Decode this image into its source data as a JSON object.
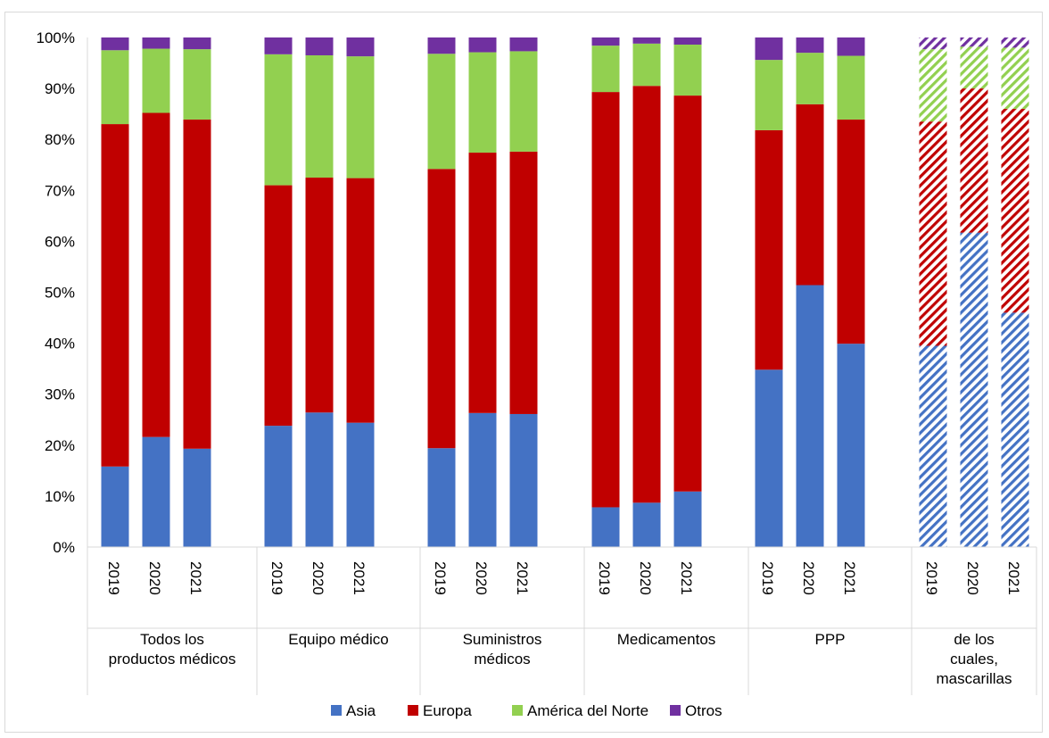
{
  "chart_data": {
    "type": "bar",
    "stacked": true,
    "normalized": true,
    "ylim": [
      0,
      100
    ],
    "yticks": [
      "0%",
      "10%",
      "20%",
      "30%",
      "40%",
      "50%",
      "60%",
      "70%",
      "80%",
      "90%",
      "100%"
    ],
    "grid": false,
    "legend_position": "bottom",
    "series": [
      {
        "name": "Asia",
        "color": "#4472c4"
      },
      {
        "name": "Europa",
        "color": "#c00000"
      },
      {
        "name": "América del Norte",
        "color": "#92d050"
      },
      {
        "name": "Otros",
        "color": "#7030a0"
      }
    ],
    "groups": [
      {
        "label": [
          "Todos los",
          "productos médicos"
        ],
        "hatched": false,
        "bars": [
          {
            "year": "2019",
            "values": [
              15.8,
              67.2,
              14.5,
              2.5
            ]
          },
          {
            "year": "2020",
            "values": [
              21.6,
              63.6,
              12.6,
              2.2
            ]
          },
          {
            "year": "2021",
            "values": [
              19.3,
              64.6,
              13.8,
              2.3
            ]
          }
        ]
      },
      {
        "label": [
          "Equipo médico"
        ],
        "hatched": false,
        "bars": [
          {
            "year": "2019",
            "values": [
              23.8,
              47.2,
              25.7,
              3.3
            ]
          },
          {
            "year": "2020",
            "values": [
              26.4,
              46.1,
              24.0,
              3.5
            ]
          },
          {
            "year": "2021",
            "values": [
              24.4,
              48.0,
              23.9,
              3.7
            ]
          }
        ]
      },
      {
        "label": [
          "Suministros",
          "médicos"
        ],
        "hatched": false,
        "bars": [
          {
            "year": "2019",
            "values": [
              19.4,
              54.8,
              22.6,
              3.2
            ]
          },
          {
            "year": "2020",
            "values": [
              26.3,
              51.1,
              19.7,
              2.9
            ]
          },
          {
            "year": "2021",
            "values": [
              26.1,
              51.5,
              19.7,
              2.7
            ]
          }
        ]
      },
      {
        "label": [
          "Medicamentos"
        ],
        "hatched": false,
        "bars": [
          {
            "year": "2019",
            "values": [
              7.8,
              81.5,
              9.1,
              1.6
            ]
          },
          {
            "year": "2020",
            "values": [
              8.7,
              81.8,
              8.3,
              1.2
            ]
          },
          {
            "year": "2021",
            "values": [
              10.9,
              77.7,
              10.0,
              1.4
            ]
          }
        ]
      },
      {
        "label": [
          "PPP"
        ],
        "hatched": false,
        "bars": [
          {
            "year": "2019",
            "values": [
              34.8,
              47.0,
              13.8,
              4.4
            ]
          },
          {
            "year": "2020",
            "values": [
              51.4,
              35.5,
              10.1,
              3.0
            ]
          },
          {
            "year": "2021",
            "values": [
              39.9,
              44.0,
              12.5,
              3.6
            ]
          }
        ]
      },
      {
        "label": [
          "de los",
          "cuales,",
          "mascarillas"
        ],
        "hatched": true,
        "bars": [
          {
            "year": "2019",
            "values": [
              39.5,
              44.0,
              14.2,
              2.3
            ]
          },
          {
            "year": "2020",
            "values": [
              61.7,
              28.3,
              8.2,
              1.8
            ]
          },
          {
            "year": "2021",
            "values": [
              46.0,
              40.0,
              12.0,
              2.0
            ]
          }
        ]
      }
    ]
  }
}
